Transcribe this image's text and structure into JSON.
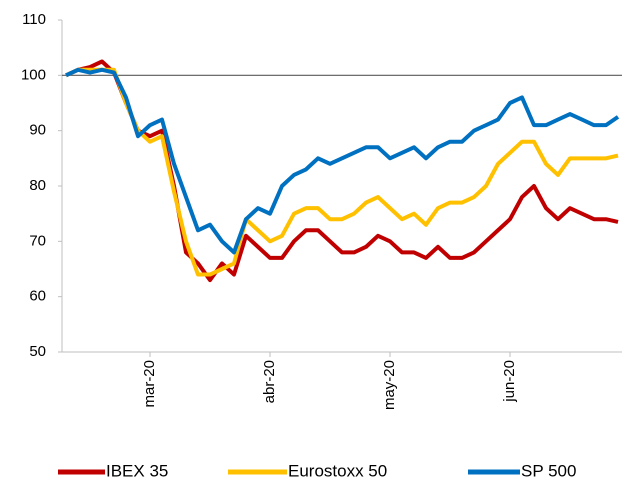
{
  "chart_data": {
    "type": "line",
    "categories": [
      null,
      null,
      null,
      null,
      null,
      null,
      null,
      "mar-20",
      null,
      null,
      null,
      null,
      null,
      null,
      null,
      null,
      null,
      "abr-20",
      null,
      null,
      null,
      null,
      null,
      null,
      null,
      null,
      null,
      "may-20",
      null,
      null,
      null,
      null,
      null,
      null,
      null,
      null,
      null,
      "jun-20",
      null,
      null,
      null,
      null,
      null,
      null,
      null,
      null,
      null
    ],
    "series": [
      {
        "name": "IBEX 35",
        "color": "#c00000",
        "values": [
          100,
          101,
          101.5,
          102.5,
          100.5,
          95,
          90,
          89,
          90,
          80,
          68,
          66,
          63,
          66,
          64,
          71,
          69,
          67,
          67,
          70,
          72,
          72,
          70,
          68,
          68,
          69,
          71,
          70,
          68,
          68,
          67,
          69,
          67,
          67,
          68,
          70,
          72,
          74,
          78,
          80,
          76,
          74,
          76,
          75,
          74,
          74,
          73.5
        ]
      },
      {
        "name": "Eurostoxx 50",
        "color": "#ffc000",
        "values": [
          100,
          101,
          101,
          101,
          101,
          95,
          90,
          88,
          89,
          79,
          70,
          64,
          64,
          65,
          66,
          74,
          72,
          70,
          71,
          75,
          76,
          76,
          74,
          74,
          75,
          77,
          78,
          76,
          74,
          75,
          73,
          76,
          77,
          77,
          78,
          80,
          84,
          86,
          88,
          88,
          84,
          82,
          85,
          85,
          85,
          85,
          85.5
        ]
      },
      {
        "name": "SP 500",
        "color": "#0070c0",
        "values": [
          100,
          101,
          100.5,
          101,
          100.5,
          96,
          89,
          91,
          92,
          84,
          78,
          72,
          73,
          70,
          68,
          74,
          76,
          75,
          80,
          82,
          83,
          85,
          84,
          85,
          86,
          87,
          87,
          85,
          86,
          87,
          85,
          87,
          88,
          88,
          90,
          91,
          92,
          95,
          96,
          91,
          91,
          92,
          93,
          92,
          91,
          91,
          92.5
        ]
      }
    ],
    "reference_line": 100,
    "ylim": [
      50,
      110
    ],
    "yticks": [
      50,
      60,
      70,
      80,
      90,
      100,
      110
    ]
  }
}
